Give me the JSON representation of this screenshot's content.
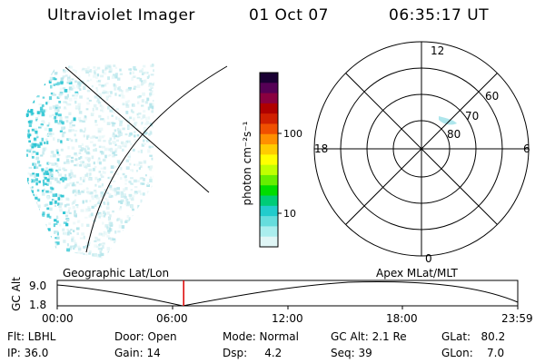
{
  "header": {
    "title": "Ultraviolet Imager",
    "date": "01 Oct 07",
    "time": "06:35:17 UT"
  },
  "colorbar": {
    "label": "photon cm⁻²s⁻¹",
    "ticks": [
      "100",
      "10"
    ],
    "colors": [
      "#1a0033",
      "#550055",
      "#8a0040",
      "#b00000",
      "#d02000",
      "#f05000",
      "#ff9000",
      "#ffcc00",
      "#ffff00",
      "#c0ff00",
      "#66ee00",
      "#00dd00",
      "#00cc77",
      "#22cccc",
      "#66dddd",
      "#aaeeee",
      "#e0f6f6"
    ]
  },
  "polar": {
    "mlt_labels": {
      "top": "12",
      "left": "18",
      "right": "6",
      "bottom": "0"
    },
    "lat_labels": [
      "60",
      "70",
      "80"
    ]
  },
  "timeline": {
    "left_title": "Geographic Lat/Lon",
    "right_title": "Apex MLat/MLT",
    "ylabel": "GC Alt",
    "ytick_top": "9.0",
    "ytick_bottom": "1.8",
    "xticks": [
      "00:00",
      "06:00",
      "12:00",
      "18:00",
      "23:59"
    ],
    "current_time_fraction": 0.2745,
    "marker_color": "#dd0000"
  },
  "footer": {
    "flt": "Flt: LBHL",
    "ip": "IP: 36.0",
    "door": "Door: Open",
    "gain": "Gain: 14",
    "mode": "Mode: Normal",
    "dsp": "Dsp:     4.2",
    "gcalt": "GC Alt: 2.1 Re",
    "seq": "Seq: 39",
    "glat": "GLat:   80.2",
    "glon": "GLon:    7.0"
  },
  "emission_color": "#29c4d2"
}
